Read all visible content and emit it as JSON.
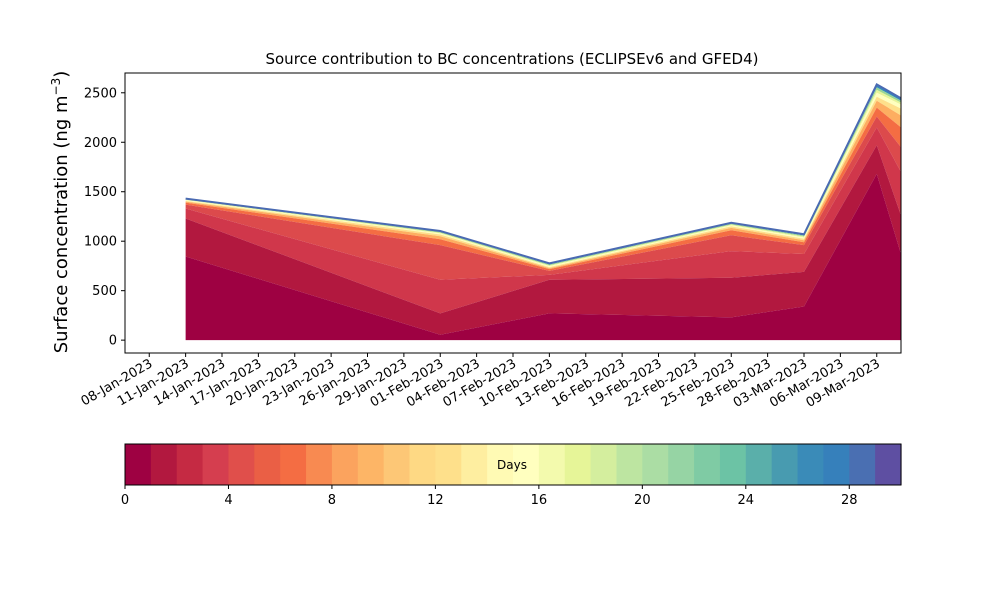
{
  "chart_data": [
    {
      "type": "area",
      "title": "Source contribution to BC concentrations (ECLIPSEv6 and GFED4)",
      "ylabel": "Surface concentration (ng m^-3)",
      "ylabel_main": "Surface concentration (ng m",
      "ylabel_sup": "−3",
      "ylabel_tail": ")",
      "xlabel": "",
      "x_type": "date",
      "xlim": [
        "2023-01-06",
        "2023-03-11"
      ],
      "ylim": [
        -130,
        2700
      ],
      "grid": false,
      "yticks": [
        0,
        500,
        1000,
        1500,
        2000,
        2500
      ],
      "xticks": [
        {
          "date": "2023-01-08",
          "label": "08-Jan-2023"
        },
        {
          "date": "2023-01-11",
          "label": "11-Jan-2023"
        },
        {
          "date": "2023-01-14",
          "label": "14-Jan-2023"
        },
        {
          "date": "2023-01-17",
          "label": "17-Jan-2023"
        },
        {
          "date": "2023-01-20",
          "label": "20-Jan-2023"
        },
        {
          "date": "2023-01-23",
          "label": "23-Jan-2023"
        },
        {
          "date": "2023-01-26",
          "label": "26-Jan-2023"
        },
        {
          "date": "2023-01-29",
          "label": "29-Jan-2023"
        },
        {
          "date": "2023-02-01",
          "label": "01-Feb-2023"
        },
        {
          "date": "2023-02-04",
          "label": "04-Feb-2023"
        },
        {
          "date": "2023-02-07",
          "label": "07-Feb-2023"
        },
        {
          "date": "2023-02-10",
          "label": "10-Feb-2023"
        },
        {
          "date": "2023-02-13",
          "label": "13-Feb-2023"
        },
        {
          "date": "2023-02-16",
          "label": "16-Feb-2023"
        },
        {
          "date": "2023-02-19",
          "label": "19-Feb-2023"
        },
        {
          "date": "2023-02-22",
          "label": "22-Feb-2023"
        },
        {
          "date": "2023-02-25",
          "label": "25-Feb-2023"
        },
        {
          "date": "2023-02-28",
          "label": "28-Feb-2023"
        },
        {
          "date": "2023-03-03",
          "label": "03-Mar-2023"
        },
        {
          "date": "2023-03-06",
          "label": "06-Mar-2023"
        },
        {
          "date": "2023-03-09",
          "label": "09-Mar-2023"
        }
      ],
      "x": [
        "2023-01-11",
        "2023-02-01",
        "2023-02-10",
        "2023-02-25",
        "2023-03-03",
        "2023-03-09",
        "2023-03-11"
      ],
      "cumulative_bands": [
        [
          845,
          55,
          270,
          230,
          340,
          1680,
          870
        ],
        [
          1230,
          270,
          610,
          630,
          690,
          1970,
          1260
        ],
        [
          1330,
          610,
          660,
          900,
          870,
          2150,
          1700
        ],
        [
          1370,
          960,
          700,
          1060,
          960,
          2260,
          1950
        ],
        [
          1390,
          1020,
          718,
          1110,
          990,
          2350,
          2150
        ],
        [
          1400,
          1050,
          728,
          1135,
          1010,
          2420,
          2270
        ],
        [
          1408,
          1068,
          738,
          1150,
          1025,
          2460,
          2340
        ],
        [
          1415,
          1078,
          748,
          1160,
          1038,
          2500,
          2380
        ],
        [
          1420,
          1086,
          756,
          1168,
          1048,
          2530,
          2400
        ],
        [
          1425,
          1094,
          765,
          1176,
          1058,
          2555,
          2420
        ],
        [
          1428,
          1100,
          772,
          1183,
          1066,
          2575,
          2438
        ],
        [
          1430,
          1103,
          776,
          1186,
          1070,
          2585,
          2445
        ]
      ],
      "band_colors": [
        "#9e0142",
        "#b2183f",
        "#d0374b",
        "#dc4a4c",
        "#f46d43",
        "#fdae61",
        "#fee08b",
        "#ffffbf",
        "#e6f598",
        "#99d594",
        "#3288bd",
        "#4a6ab2"
      ],
      "total": [
        1430,
        1103,
        776,
        1186,
        1070,
        2585,
        2445
      ],
      "total_color": "#4a6ab2",
      "colorbar": {
        "label": "Days",
        "min": 0,
        "max": 30,
        "ticks": [
          0,
          4,
          8,
          12,
          16,
          20,
          24,
          28
        ],
        "colors": [
          "#9e0142",
          "#b2183f",
          "#c52a43",
          "#d53e4f",
          "#e04f4b",
          "#ea5f45",
          "#f46d43",
          "#f88a51",
          "#fba35e",
          "#fdb566",
          "#fdc776",
          "#fed984",
          "#fee08b",
          "#feeea0",
          "#fffab4",
          "#ffffbf",
          "#f3faad",
          "#e6f598",
          "#d4ee9e",
          "#bde5a1",
          "#abdda4",
          "#96d4a4",
          "#7fcba4",
          "#6cc3a5",
          "#5aafaa",
          "#489bb0",
          "#3a8bb8",
          "#3680bb",
          "#4a6fb2",
          "#5e4fa2"
        ]
      }
    }
  ]
}
